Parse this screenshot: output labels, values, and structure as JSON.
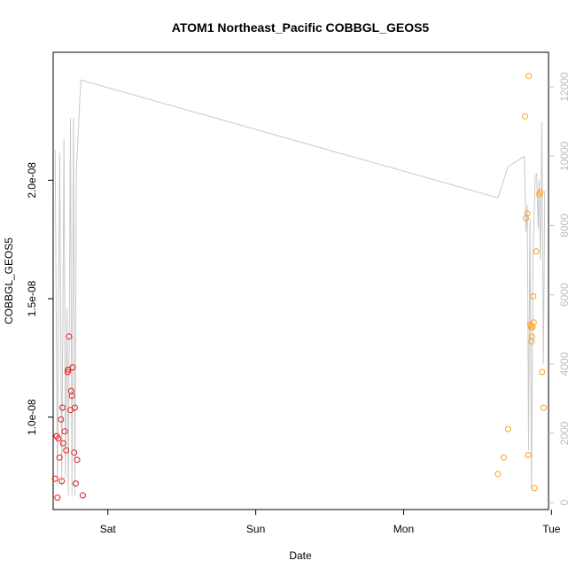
{
  "chart_data": {
    "type": "scatter",
    "title": "ATOM1 Northeast_Pacific COBBGL_GEOS5",
    "xlabel": "Date",
    "ylabel": "COBBGL_GEOS5",
    "x_axis": {
      "unit": "day",
      "range": [
        -0.37,
        2.98
      ],
      "ticks": [
        {
          "value": 0,
          "label": "Sat"
        },
        {
          "value": 1,
          "label": "Sun"
        },
        {
          "value": 2,
          "label": "Mon"
        },
        {
          "value": 3,
          "label": "Tue"
        }
      ]
    },
    "y_axis": {
      "range": [
        6.1e-09,
        2.54e-08
      ],
      "ticks": [
        {
          "value": 1e-08,
          "label": "1.0e-08"
        },
        {
          "value": 1.5e-08,
          "label": "1.5e-08"
        },
        {
          "value": 2e-08,
          "label": "2.0e-08"
        }
      ]
    },
    "y2_axis": {
      "range": [
        -200,
        13000
      ],
      "ticks": [
        {
          "value": 0,
          "label": "0"
        },
        {
          "value": 2000,
          "label": "2000"
        },
        {
          "value": 4000,
          "label": "4000"
        },
        {
          "value": 6000,
          "label": "6000"
        },
        {
          "value": 8000,
          "label": "8000"
        },
        {
          "value": 10000,
          "label": "10000"
        },
        {
          "value": 12000,
          "label": "12000"
        }
      ]
    },
    "colors": {
      "series1": "#e41a1c",
      "series2": "#ff9f1a",
      "altitude": "#c8c8c8"
    },
    "series": [
      {
        "color": "red",
        "points": [
          {
            "x": -0.357,
            "y": 7.4e-09
          },
          {
            "x": -0.346,
            "y": 9.2e-09
          },
          {
            "x": -0.341,
            "y": 6.6e-09
          },
          {
            "x": -0.336,
            "y": 9.1e-09
          },
          {
            "x": -0.327,
            "y": 8.3e-09
          },
          {
            "x": -0.317,
            "y": 9.9e-09
          },
          {
            "x": -0.312,
            "y": 7.3e-09
          },
          {
            "x": -0.307,
            "y": 1.04e-08
          },
          {
            "x": -0.302,
            "y": 8.9e-09
          },
          {
            "x": -0.292,
            "y": 9.4e-09
          },
          {
            "x": -0.282,
            "y": 8.6e-09
          },
          {
            "x": -0.272,
            "y": 1.19e-08
          },
          {
            "x": -0.27,
            "y": 1.2e-08
          },
          {
            "x": -0.263,
            "y": 1.34e-08
          },
          {
            "x": -0.253,
            "y": 1.03e-08
          },
          {
            "x": -0.248,
            "y": 1.11e-08
          },
          {
            "x": -0.243,
            "y": 1.09e-08
          },
          {
            "x": -0.238,
            "y": 1.21e-08
          },
          {
            "x": -0.228,
            "y": 8.5e-09
          },
          {
            "x": -0.223,
            "y": 1.04e-08
          },
          {
            "x": -0.218,
            "y": 7.2e-09
          },
          {
            "x": -0.208,
            "y": 8.2e-09
          },
          {
            "x": -0.17,
            "y": 6.7e-09
          }
        ]
      },
      {
        "color": "orange",
        "points": [
          {
            "x": 2.637,
            "y": 7.6e-09
          },
          {
            "x": 2.677,
            "y": 8.3e-09
          },
          {
            "x": 2.707,
            "y": 9.5e-09
          },
          {
            "x": 2.822,
            "y": 2.27e-08
          },
          {
            "x": 2.827,
            "y": 1.84e-08
          },
          {
            "x": 2.837,
            "y": 1.86e-08
          },
          {
            "x": 2.842,
            "y": 8.4e-09
          },
          {
            "x": 2.847,
            "y": 2.44e-08
          },
          {
            "x": 2.857,
            "y": 1.39e-08
          },
          {
            "x": 2.862,
            "y": 1.38e-08
          },
          {
            "x": 2.865,
            "y": 1.32e-08
          },
          {
            "x": 2.868,
            "y": 1.34e-08
          },
          {
            "x": 2.872,
            "y": 1.38e-08
          },
          {
            "x": 2.877,
            "y": 1.51e-08
          },
          {
            "x": 2.88,
            "y": 1.4e-08
          },
          {
            "x": 2.885,
            "y": 7e-09
          },
          {
            "x": 2.897,
            "y": 1.7e-08
          },
          {
            "x": 2.917,
            "y": 1.94e-08
          },
          {
            "x": 2.925,
            "y": 1.95e-08
          },
          {
            "x": 2.937,
            "y": 1.19e-08
          },
          {
            "x": 2.947,
            "y": 1.04e-08
          }
        ]
      }
    ],
    "altitude_line": {
      "axis": "right",
      "points": [
        {
          "x": -0.357,
          "y": 10200
        },
        {
          "x": -0.341,
          "y": 500
        },
        {
          "x": -0.326,
          "y": 10100
        },
        {
          "x": -0.312,
          "y": 500
        },
        {
          "x": -0.297,
          "y": 10500
        },
        {
          "x": -0.287,
          "y": 700
        },
        {
          "x": -0.277,
          "y": 5600
        },
        {
          "x": -0.267,
          "y": 200
        },
        {
          "x": -0.253,
          "y": 11100
        },
        {
          "x": -0.243,
          "y": 200
        },
        {
          "x": -0.233,
          "y": 11100
        },
        {
          "x": -0.223,
          "y": 200
        },
        {
          "x": -0.213,
          "y": 9600
        },
        {
          "x": -0.183,
          "y": 12200
        },
        {
          "x": 2.637,
          "y": 8800
        },
        {
          "x": 2.707,
          "y": 9700
        },
        {
          "x": 2.817,
          "y": 10000
        },
        {
          "x": 2.827,
          "y": 7800
        },
        {
          "x": 2.837,
          "y": 8600
        },
        {
          "x": 2.845,
          "y": 1500
        },
        {
          "x": 2.855,
          "y": 8200
        },
        {
          "x": 2.865,
          "y": 400
        },
        {
          "x": 2.875,
          "y": 7200
        },
        {
          "x": 2.89,
          "y": 9400
        },
        {
          "x": 2.9,
          "y": 9500
        },
        {
          "x": 2.91,
          "y": 7900
        },
        {
          "x": 2.917,
          "y": 9300
        },
        {
          "x": 2.925,
          "y": 7000
        },
        {
          "x": 2.935,
          "y": 11000
        },
        {
          "x": 2.945,
          "y": 4000
        },
        {
          "x": 2.955,
          "y": 9000
        }
      ]
    },
    "grid": false,
    "legend": "none"
  }
}
